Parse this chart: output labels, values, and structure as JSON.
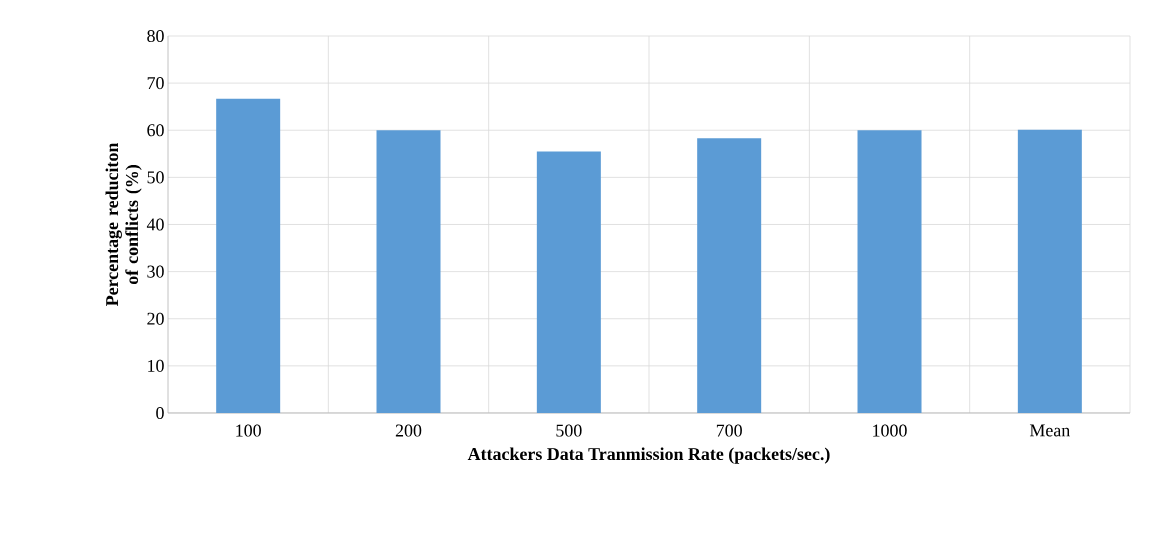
{
  "chart_data": {
    "type": "bar",
    "xlabel": "Attackers Data Tranmission Rate (packets/sec.)",
    "ylabel": "Percentage reduciton of conflicts (%)",
    "categories": [
      "100",
      "200",
      "500",
      "700",
      "1000",
      "Mean"
    ],
    "values": [
      66.7,
      60,
      55.5,
      58.3,
      60,
      60.1
    ],
    "color": "#5b9bd5",
    "ylim": [
      0,
      80
    ],
    "yticks": [
      0,
      10,
      20,
      30,
      40,
      50,
      60,
      70,
      80
    ],
    "grid": true
  }
}
